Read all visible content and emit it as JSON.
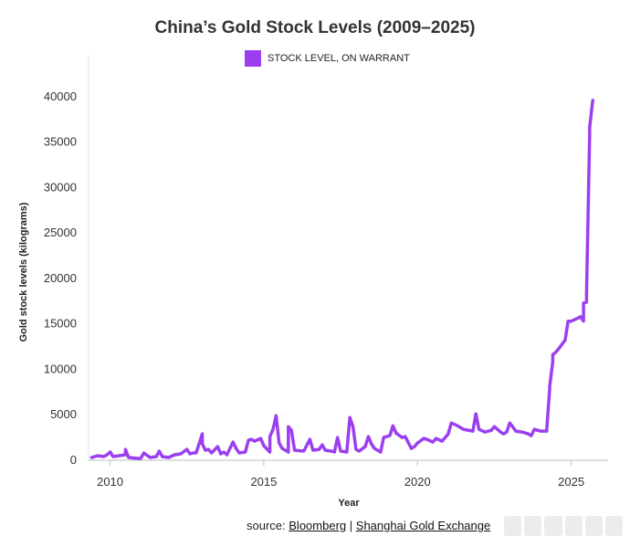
{
  "title": "China’s Gold Stock Levels (2009–2025)",
  "legend": {
    "label": "STOCK LEVEL, ON WARRANT",
    "color": "#9b3ff0"
  },
  "source": {
    "prefix": "source:",
    "link1": "Bloomberg",
    "separator": "|",
    "link2": "Shanghai Gold Exchange"
  },
  "chart_data": {
    "type": "line",
    "title": "China’s Gold Stock Levels (2009–2025)",
    "xlabel": "Year",
    "ylabel": "Gold stock levels (kilograms)",
    "xlim": [
      2009.3,
      2026.2
    ],
    "ylim": [
      0,
      42000
    ],
    "x_ticks": [
      2010,
      2015,
      2020,
      2025
    ],
    "y_ticks": [
      0,
      5000,
      10000,
      15000,
      20000,
      25000,
      30000,
      35000,
      40000
    ],
    "grid": false,
    "legend_position": "top-center",
    "series": [
      {
        "name": "STOCK LEVEL, ON WARRANT",
        "color": "#9b3ff0",
        "x": [
          2009.4,
          2009.6,
          2009.8,
          2009.9,
          2010.0,
          2010.1,
          2010.3,
          2010.5,
          2010.5,
          2010.6,
          2010.9,
          2011.0,
          2011.1,
          2011.3,
          2011.5,
          2011.6,
          2011.7,
          2011.9,
          2012.1,
          2012.3,
          2012.5,
          2012.6,
          2012.7,
          2012.8,
          2013.0,
          2013.0,
          2013.1,
          2013.2,
          2013.3,
          2013.5,
          2013.6,
          2013.7,
          2013.8,
          2014.0,
          2014.1,
          2014.2,
          2014.4,
          2014.5,
          2014.6,
          2014.7,
          2014.9,
          2015.0,
          2015.2,
          2015.2,
          2015.3,
          2015.4,
          2015.5,
          2015.6,
          2015.8,
          2015.8,
          2015.9,
          2016.0,
          2016.3,
          2016.5,
          2016.6,
          2016.8,
          2016.9,
          2017.0,
          2017.2,
          2017.3,
          2017.4,
          2017.5,
          2017.7,
          2017.8,
          2017.9,
          2018.0,
          2018.1,
          2018.3,
          2018.4,
          2018.5,
          2018.6,
          2018.8,
          2018.9,
          2019.1,
          2019.2,
          2019.3,
          2019.5,
          2019.6,
          2019.8,
          2019.9,
          2020.0,
          2020.2,
          2020.3,
          2020.5,
          2020.6,
          2020.8,
          2021.0,
          2021.1,
          2021.3,
          2021.5,
          2021.8,
          2021.9,
          2022.0,
          2022.2,
          2022.4,
          2022.5,
          2022.7,
          2022.8,
          2022.9,
          2023.0,
          2023.2,
          2023.4,
          2023.6,
          2023.7,
          2023.8,
          2024.0,
          2024.2,
          2024.3,
          2024.3,
          2024.4,
          2024.4,
          2024.5,
          2024.6,
          2024.8,
          2024.9,
          2025.0,
          2025.0,
          2025.2,
          2025.3,
          2025.4,
          2025.4,
          2025.5,
          2025.5,
          2025.6,
          2025.6,
          2025.7
        ],
        "values": [
          200,
          400,
          300,
          500,
          800,
          300,
          400,
          500,
          1100,
          200,
          100,
          100,
          700,
          200,
          300,
          900,
          300,
          200,
          500,
          600,
          1100,
          600,
          700,
          700,
          2800,
          1700,
          1000,
          1100,
          700,
          1400,
          600,
          800,
          500,
          1900,
          1200,
          700,
          800,
          2100,
          2200,
          2000,
          2300,
          1500,
          800,
          2500,
          3300,
          4800,
          1800,
          1200,
          800,
          3600,
          3200,
          1000,
          900,
          2200,
          1000,
          1100,
          1600,
          1000,
          900,
          800,
          2400,
          900,
          800,
          4600,
          3600,
          1100,
          900,
          1400,
          2500,
          1700,
          1200,
          800,
          2400,
          2600,
          3700,
          2900,
          2400,
          2500,
          1200,
          1400,
          1800,
          2300,
          2200,
          1900,
          2300,
          2000,
          2800,
          4000,
          3700,
          3300,
          3100,
          5000,
          3300,
          3000,
          3200,
          3600,
          3000,
          2800,
          3000,
          4000,
          3100,
          3000,
          2800,
          2600,
          3300,
          3100,
          3100,
          7700,
          8000,
          10700,
          11500,
          11800,
          12200,
          13100,
          15200,
          15200,
          15200,
          15500,
          15700,
          15200,
          17200,
          17300,
          18200,
          35700,
          36500,
          39500
        ]
      }
    ]
  }
}
